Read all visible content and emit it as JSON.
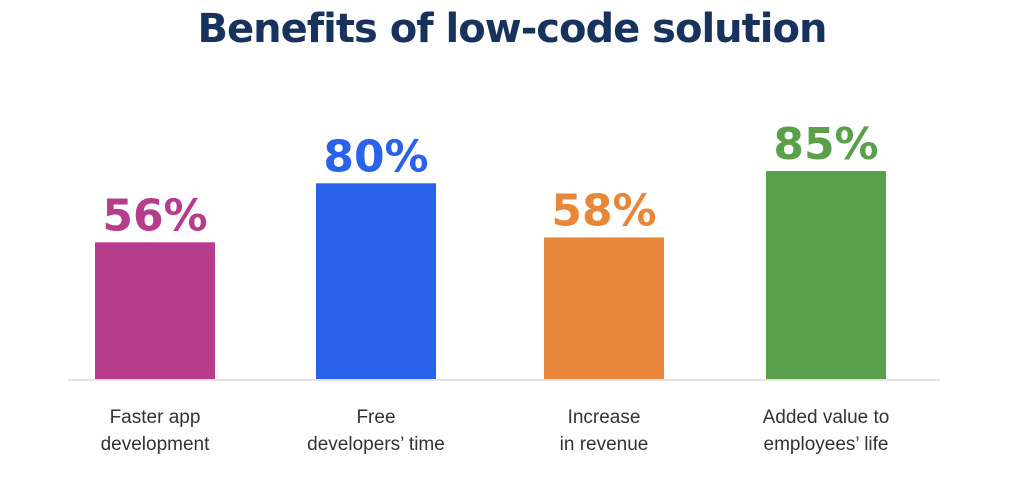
{
  "chart_data": {
    "type": "bar",
    "title": "Benefits of low-code solution",
    "categories": [
      [
        "Faster app",
        "development"
      ],
      [
        "Free",
        "developers’ time"
      ],
      [
        "Increase",
        "in revenue"
      ],
      [
        "Added value to",
        "employees’ life"
      ]
    ],
    "values": [
      56,
      80,
      58,
      85
    ],
    "value_labels": [
      "56%",
      "80%",
      "58%",
      "85%"
    ],
    "colors": [
      "#b83c8c",
      "#2a62eb",
      "#e8873a",
      "#5aa04a"
    ],
    "ylim": [
      0,
      100
    ],
    "grid": false,
    "legend": "none"
  }
}
